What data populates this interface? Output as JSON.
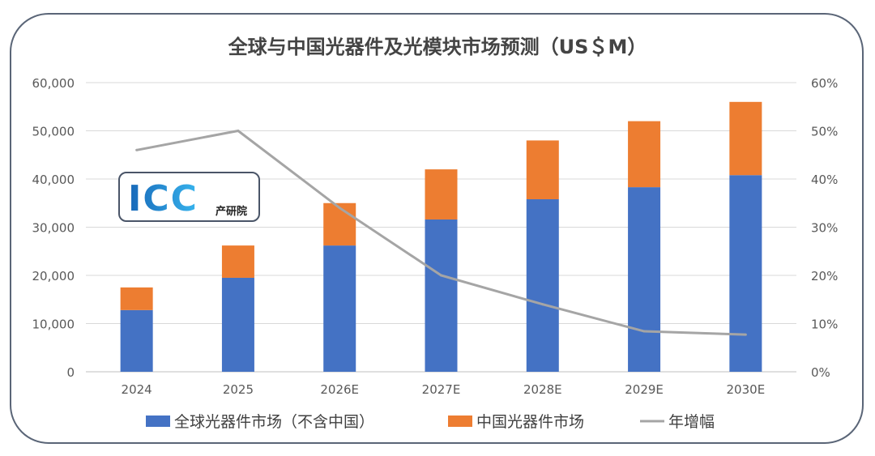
{
  "chart_data": {
    "type": "bar",
    "stacked": true,
    "title": "全球与中国光器件及光模块市场预测（US＄M）",
    "categories": [
      "2024",
      "2025",
      "2026E",
      "2027E",
      "2028E",
      "2029E",
      "2030E"
    ],
    "series": [
      {
        "name": "全球光器件市场（不含中国）",
        "type": "bar",
        "axis": "left",
        "color": "#4472C4",
        "values": [
          12800,
          19500,
          26200,
          31600,
          35800,
          38300,
          40800
        ]
      },
      {
        "name": "中国光器件市场",
        "type": "bar",
        "axis": "left",
        "color": "#ED7D31",
        "values": [
          4700,
          6700,
          8800,
          10400,
          12200,
          13700,
          15200
        ]
      },
      {
        "name": "年增幅",
        "type": "line",
        "axis": "right",
        "color": "#A5A5A5",
        "values": [
          0.46,
          0.5,
          0.34,
          0.2,
          0.14,
          0.084,
          0.077
        ]
      }
    ],
    "ylim": [
      0,
      60000
    ],
    "y2lim": [
      0,
      0.6
    ],
    "yticks": [
      "0",
      "10,000",
      "20,000",
      "30,000",
      "40,000",
      "50,000",
      "60,000"
    ],
    "y2ticks": [
      "0%",
      "10%",
      "20%",
      "30%",
      "40%",
      "50%",
      "60%"
    ],
    "grid": true,
    "legend": "bottom"
  },
  "logo": {
    "letters": "ICC",
    "text": "产研院"
  }
}
